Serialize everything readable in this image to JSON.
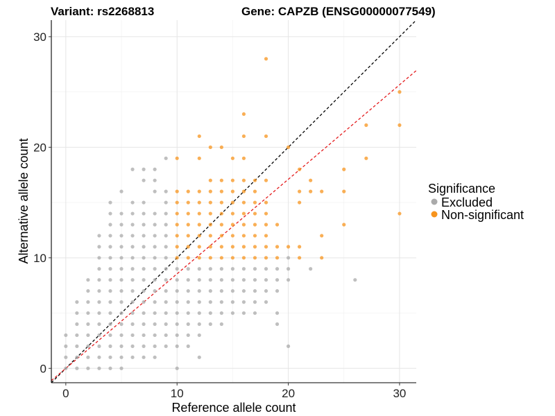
{
  "chart_data": {
    "type": "scatter",
    "title_left": "Variant: rs2268813",
    "title_right": "Gene: CAPZB (ENSG00000077549)",
    "xlabel": "Reference allele count",
    "ylabel": "Alternative allele count",
    "xlim": [
      -1.3,
      31.5
    ],
    "ylim": [
      -1.3,
      31.5
    ],
    "x_ticks": [
      "0",
      "10",
      "20",
      "30"
    ],
    "y_ticks": [
      "0",
      "10",
      "20",
      "30"
    ],
    "grid": true,
    "legend": {
      "title": "Significance",
      "position": "right",
      "entries": [
        {
          "label": "Excluded",
          "color": "#aaaaaa"
        },
        {
          "label": "Non-significant",
          "color": "#f7941d"
        }
      ]
    },
    "reference_lines": [
      {
        "type": "y=x",
        "slope": 1,
        "intercept": 0,
        "color": "#000000",
        "style": "dashed"
      },
      {
        "type": "fit",
        "slope": 0.855,
        "intercept": 0,
        "color": "#e41a1c",
        "style": "dashed"
      }
    ],
    "series": [
      {
        "name": "Excluded",
        "color": "#aaaaaa",
        "points": [
          [
            0,
            0
          ],
          [
            0,
            1
          ],
          [
            0,
            2
          ],
          [
            0,
            3
          ],
          [
            1,
            0
          ],
          [
            1,
            1
          ],
          [
            1,
            2
          ],
          [
            1,
            3
          ],
          [
            1,
            4
          ],
          [
            1,
            5
          ],
          [
            1,
            6
          ],
          [
            2,
            0
          ],
          [
            2,
            1
          ],
          [
            2,
            2
          ],
          [
            2,
            3
          ],
          [
            2,
            4
          ],
          [
            2,
            5
          ],
          [
            2,
            6
          ],
          [
            2,
            7
          ],
          [
            2,
            8
          ],
          [
            3,
            0
          ],
          [
            3,
            1
          ],
          [
            3,
            2
          ],
          [
            3,
            3
          ],
          [
            3,
            4
          ],
          [
            3,
            5
          ],
          [
            3,
            6
          ],
          [
            3,
            7
          ],
          [
            3,
            8
          ],
          [
            3,
            9
          ],
          [
            3,
            10
          ],
          [
            3,
            11
          ],
          [
            3,
            12
          ],
          [
            4,
            0
          ],
          [
            4,
            1
          ],
          [
            4,
            2
          ],
          [
            4,
            3
          ],
          [
            4,
            4
          ],
          [
            4,
            5
          ],
          [
            4,
            6
          ],
          [
            4,
            7
          ],
          [
            4,
            8
          ],
          [
            4,
            9
          ],
          [
            4,
            10
          ],
          [
            4,
            11
          ],
          [
            4,
            12
          ],
          [
            4,
            13
          ],
          [
            4,
            14
          ],
          [
            4,
            15
          ],
          [
            5,
            0
          ],
          [
            5,
            1
          ],
          [
            5,
            2
          ],
          [
            5,
            3
          ],
          [
            5,
            4
          ],
          [
            5,
            5
          ],
          [
            5,
            6
          ],
          [
            5,
            7
          ],
          [
            5,
            8
          ],
          [
            5,
            9
          ],
          [
            5,
            10
          ],
          [
            5,
            11
          ],
          [
            5,
            12
          ],
          [
            5,
            13
          ],
          [
            5,
            14
          ],
          [
            5,
            16
          ],
          [
            6,
            1
          ],
          [
            6,
            2
          ],
          [
            6,
            3
          ],
          [
            6,
            4
          ],
          [
            6,
            5
          ],
          [
            6,
            6
          ],
          [
            6,
            7
          ],
          [
            6,
            8
          ],
          [
            6,
            9
          ],
          [
            6,
            10
          ],
          [
            6,
            11
          ],
          [
            6,
            12
          ],
          [
            6,
            13
          ],
          [
            6,
            14
          ],
          [
            6,
            15
          ],
          [
            6,
            18
          ],
          [
            7,
            1
          ],
          [
            7,
            2
          ],
          [
            7,
            3
          ],
          [
            7,
            4
          ],
          [
            7,
            5
          ],
          [
            7,
            6
          ],
          [
            7,
            7
          ],
          [
            7,
            8
          ],
          [
            7,
            9
          ],
          [
            7,
            10
          ],
          [
            7,
            11
          ],
          [
            7,
            12
          ],
          [
            7,
            13
          ],
          [
            7,
            14
          ],
          [
            7,
            15
          ],
          [
            7,
            17
          ],
          [
            7,
            18
          ],
          [
            8,
            1
          ],
          [
            8,
            2
          ],
          [
            8,
            3
          ],
          [
            8,
            4
          ],
          [
            8,
            5
          ],
          [
            8,
            6
          ],
          [
            8,
            7
          ],
          [
            8,
            8
          ],
          [
            8,
            9
          ],
          [
            8,
            10
          ],
          [
            8,
            11
          ],
          [
            8,
            12
          ],
          [
            8,
            13
          ],
          [
            8,
            14
          ],
          [
            8,
            16
          ],
          [
            8,
            17
          ],
          [
            8,
            18
          ],
          [
            9,
            2
          ],
          [
            9,
            3
          ],
          [
            9,
            4
          ],
          [
            9,
            5
          ],
          [
            9,
            6
          ],
          [
            9,
            7
          ],
          [
            9,
            8
          ],
          [
            9,
            9
          ],
          [
            9,
            10
          ],
          [
            9,
            11
          ],
          [
            9,
            12
          ],
          [
            9,
            13
          ],
          [
            9,
            14
          ],
          [
            9,
            15
          ],
          [
            9,
            16
          ],
          [
            9,
            19
          ],
          [
            10,
            0
          ],
          [
            10,
            2
          ],
          [
            10,
            3
          ],
          [
            10,
            4
          ],
          [
            10,
            5
          ],
          [
            10,
            6
          ],
          [
            10,
            7
          ],
          [
            10,
            8
          ],
          [
            10,
            9
          ],
          [
            11,
            2
          ],
          [
            11,
            3
          ],
          [
            11,
            4
          ],
          [
            11,
            5
          ],
          [
            11,
            6
          ],
          [
            11,
            7
          ],
          [
            11,
            8
          ],
          [
            11,
            9
          ],
          [
            12,
            1
          ],
          [
            12,
            3
          ],
          [
            12,
            4
          ],
          [
            12,
            5
          ],
          [
            12,
            6
          ],
          [
            12,
            7
          ],
          [
            12,
            8
          ],
          [
            12,
            9
          ],
          [
            13,
            4
          ],
          [
            13,
            5
          ],
          [
            13,
            6
          ],
          [
            13,
            7
          ],
          [
            13,
            8
          ],
          [
            13,
            9
          ],
          [
            14,
            4
          ],
          [
            14,
            5
          ],
          [
            14,
            6
          ],
          [
            14,
            7
          ],
          [
            14,
            8
          ],
          [
            14,
            9
          ],
          [
            15,
            5
          ],
          [
            15,
            6
          ],
          [
            15,
            7
          ],
          [
            15,
            8
          ],
          [
            15,
            9
          ],
          [
            16,
            5
          ],
          [
            16,
            6
          ],
          [
            16,
            7
          ],
          [
            16,
            8
          ],
          [
            16,
            9
          ],
          [
            17,
            5
          ],
          [
            17,
            6
          ],
          [
            17,
            7
          ],
          [
            17,
            8
          ],
          [
            17,
            9
          ],
          [
            18,
            6
          ],
          [
            18,
            7
          ],
          [
            18,
            8
          ],
          [
            18,
            9
          ],
          [
            19,
            4
          ],
          [
            19,
            5
          ],
          [
            19,
            7
          ],
          [
            19,
            8
          ],
          [
            19,
            9
          ],
          [
            20,
            2
          ],
          [
            20,
            8
          ],
          [
            20,
            9
          ],
          [
            20,
            10
          ],
          [
            22,
            9
          ],
          [
            26,
            8
          ]
        ]
      },
      {
        "name": "Non-significant",
        "color": "#f7941d",
        "points": [
          [
            10,
            10
          ],
          [
            10,
            11
          ],
          [
            10,
            12
          ],
          [
            10,
            13
          ],
          [
            10,
            14
          ],
          [
            10,
            15
          ],
          [
            10,
            16
          ],
          [
            10,
            19
          ],
          [
            11,
            10
          ],
          [
            11,
            11
          ],
          [
            11,
            12
          ],
          [
            11,
            13
          ],
          [
            11,
            14
          ],
          [
            11,
            15
          ],
          [
            11,
            16
          ],
          [
            12,
            10
          ],
          [
            12,
            11
          ],
          [
            12,
            12
          ],
          [
            12,
            13
          ],
          [
            12,
            14
          ],
          [
            12,
            15
          ],
          [
            12,
            16
          ],
          [
            12,
            19
          ],
          [
            12,
            21
          ],
          [
            13,
            10
          ],
          [
            13,
            11
          ],
          [
            13,
            12
          ],
          [
            13,
            13
          ],
          [
            13,
            14
          ],
          [
            13,
            15
          ],
          [
            13,
            16
          ],
          [
            13,
            17
          ],
          [
            13,
            20
          ],
          [
            14,
            10
          ],
          [
            14,
            11
          ],
          [
            14,
            12
          ],
          [
            14,
            13
          ],
          [
            14,
            14
          ],
          [
            14,
            15
          ],
          [
            14,
            16
          ],
          [
            14,
            17
          ],
          [
            14,
            20
          ],
          [
            15,
            10
          ],
          [
            15,
            11
          ],
          [
            15,
            12
          ],
          [
            15,
            13
          ],
          [
            15,
            14
          ],
          [
            15,
            15
          ],
          [
            15,
            16
          ],
          [
            15,
            17
          ],
          [
            15,
            19
          ],
          [
            16,
            10
          ],
          [
            16,
            11
          ],
          [
            16,
            12
          ],
          [
            16,
            13
          ],
          [
            16,
            14
          ],
          [
            16,
            15
          ],
          [
            16,
            16
          ],
          [
            16,
            17
          ],
          [
            16,
            19
          ],
          [
            16,
            21
          ],
          [
            16,
            23
          ],
          [
            17,
            10
          ],
          [
            17,
            11
          ],
          [
            17,
            12
          ],
          [
            17,
            13
          ],
          [
            17,
            14
          ],
          [
            17,
            15
          ],
          [
            17,
            16
          ],
          [
            17,
            17
          ],
          [
            18,
            10
          ],
          [
            18,
            11
          ],
          [
            18,
            12
          ],
          [
            18,
            13
          ],
          [
            18,
            14
          ],
          [
            18,
            15
          ],
          [
            18,
            17
          ],
          [
            18,
            21
          ],
          [
            18,
            28
          ],
          [
            19,
            10
          ],
          [
            19,
            11
          ],
          [
            19,
            13
          ],
          [
            20,
            11
          ],
          [
            20,
            20
          ],
          [
            21,
            10
          ],
          [
            21,
            11
          ],
          [
            21,
            15
          ],
          [
            21,
            16
          ],
          [
            21,
            18
          ],
          [
            22,
            16
          ],
          [
            22,
            17
          ],
          [
            23,
            10
          ],
          [
            23,
            12
          ],
          [
            23,
            16
          ],
          [
            25,
            13
          ],
          [
            25,
            16
          ],
          [
            25,
            18
          ],
          [
            27,
            19
          ],
          [
            27,
            22
          ],
          [
            30,
            14
          ],
          [
            30,
            22
          ],
          [
            30,
            25
          ]
        ]
      }
    ]
  }
}
